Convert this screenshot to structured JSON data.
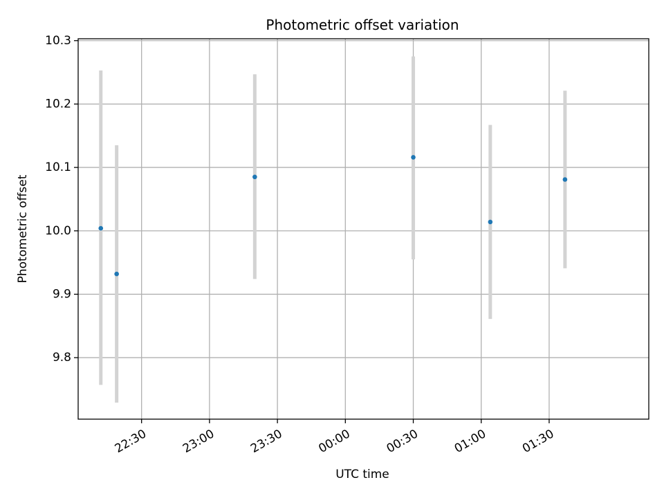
{
  "chart_data": {
    "type": "scatter",
    "title": "Photometric offset variation",
    "xlabel": "UTC time",
    "ylabel": "Photometric offset",
    "x_axis_type": "time",
    "xlim": [
      "22:02",
      "02:14"
    ],
    "ylim": [
      9.703,
      10.303
    ],
    "x_ticks": [
      "22:30",
      "23:00",
      "23:30",
      "00:00",
      "00:30",
      "01:00",
      "01:30"
    ],
    "y_ticks": [
      9.8,
      9.9,
      10.0,
      10.1,
      10.2,
      10.3
    ],
    "y_tick_labels": [
      "9.8",
      "9.9",
      "10.0",
      "10.1",
      "10.2",
      "10.3"
    ],
    "grid": true,
    "marker_color": "#1f77b4",
    "errorbar_color": "#d3d3d3",
    "points": [
      {
        "x": "22:12",
        "y": 10.004,
        "ylow": 9.757,
        "yhigh": 10.253
      },
      {
        "x": "22:19",
        "y": 9.932,
        "ylow": 9.729,
        "yhigh": 10.135
      },
      {
        "x": "23:20",
        "y": 10.085,
        "ylow": 9.924,
        "yhigh": 10.247
      },
      {
        "x": "00:30",
        "y": 10.116,
        "ylow": 9.955,
        "yhigh": 10.275
      },
      {
        "x": "01:04",
        "y": 10.014,
        "ylow": 9.861,
        "yhigh": 10.167
      },
      {
        "x": "01:37",
        "y": 10.081,
        "ylow": 9.941,
        "yhigh": 10.221
      }
    ]
  }
}
